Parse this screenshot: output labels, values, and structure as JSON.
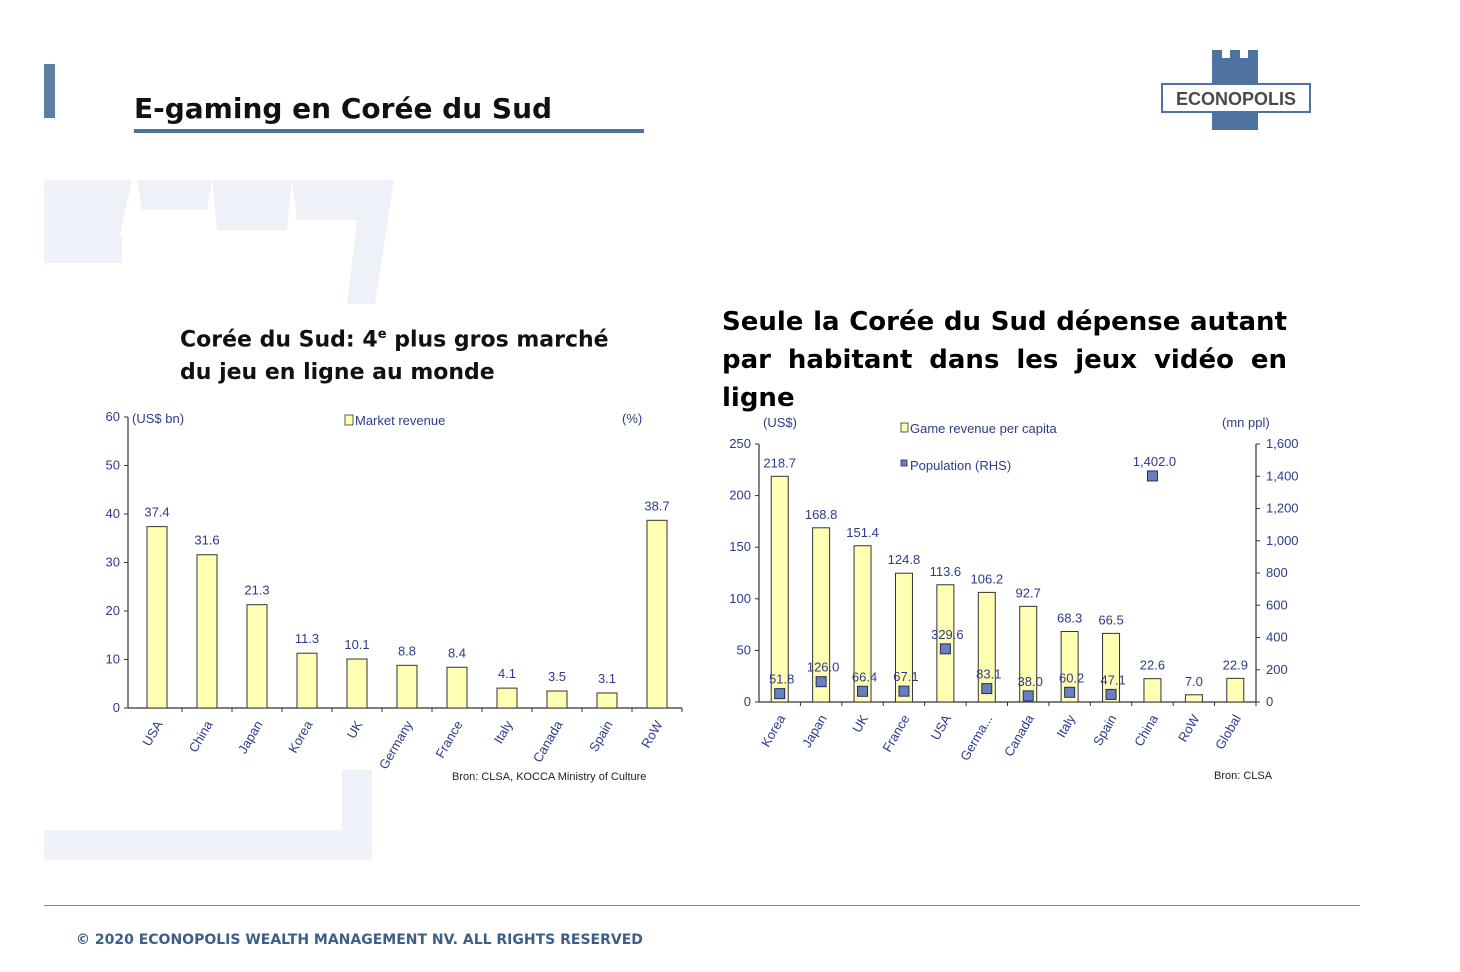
{
  "header": {
    "title": "E-gaming en Corée du Sud",
    "logo_text": "ECONOPOLIS"
  },
  "left_panel": {
    "subtitle_part1": "Corée du Sud: 4",
    "subtitle_sup": "e",
    "subtitle_part2": " plus gros marché du jeu en ligne au monde",
    "source": "Bron: CLSA, KOCCA Ministry of Culture"
  },
  "right_panel": {
    "subtitle_line1": "Seule la Corée du Sud dépense autant",
    "subtitle_line2": "par habitant dans les jeux vidéo en ligne",
    "source": "Bron: CLSA"
  },
  "footer": {
    "text": "© 2020 ECONOPOLIS WEALTH MANAGEMENT NV. ALL RIGHTS RESERVED"
  },
  "colors": {
    "accent": "#4f73a0",
    "bar_fill": "#ffffb3",
    "bar_stroke": "#333333",
    "marker": "#6b7fbf",
    "label": "#2d3b8c"
  },
  "chart_data": [
    {
      "type": "bar",
      "categories": [
        "USA",
        "China",
        "Japan",
        "Korea",
        "UK",
        "Germany",
        "France",
        "Italy",
        "Canada",
        "Spain",
        "RoW"
      ],
      "series": [
        {
          "name": "Market revenue",
          "values": [
            37.4,
            31.6,
            21.3,
            11.3,
            10.1,
            8.8,
            8.4,
            4.1,
            3.5,
            3.1,
            38.7
          ]
        }
      ],
      "value_labels": [
        "37.4",
        "31.6",
        "21.3",
        "11.3",
        "10.1",
        "8.8",
        "8.4",
        "4.1",
        "3.5",
        "3.1",
        "38.7"
      ],
      "ylim": [
        0,
        60
      ],
      "yticks": [
        0,
        10,
        20,
        30,
        40,
        50,
        60
      ],
      "y_unit_left": "(US$ bn)",
      "y_unit_right": "(%)",
      "legend": "top-center",
      "grid": false
    },
    {
      "type": "bar",
      "categories": [
        "Korea",
        "Japan",
        "UK",
        "France",
        "USA",
        "Germa...",
        "Canada",
        "Italy",
        "Spain",
        "China",
        "RoW",
        "Global"
      ],
      "series": [
        {
          "name": "Game revenue per capita",
          "axis": "left",
          "values": [
            218.7,
            168.8,
            151.4,
            124.8,
            113.6,
            106.2,
            92.7,
            68.3,
            66.5,
            22.6,
            7.0,
            22.9
          ],
          "value_labels": [
            "218.7",
            "168.8",
            "151.4",
            "124.8",
            "113.6",
            "106.2",
            "92.7",
            "68.3",
            "66.5",
            "22.6",
            "7.0",
            "22.9"
          ]
        },
        {
          "name": "Population (RHS)",
          "axis": "right",
          "values": [
            51.8,
            126.0,
            66.4,
            67.1,
            329.6,
            83.1,
            38.0,
            60.2,
            47.1,
            1402.0,
            null,
            null
          ],
          "value_labels": [
            "51.8",
            "126.0",
            "66.4",
            "67.1",
            "329.6",
            "83.1",
            "38.0",
            "60.2",
            "47.1",
            "1,402.0",
            "",
            ""
          ]
        }
      ],
      "ylim_left": [
        0,
        250
      ],
      "yticks_left": [
        "0",
        "50",
        "100",
        "150",
        "200",
        "250"
      ],
      "ylim_right": [
        0,
        1600
      ],
      "yticks_right": [
        "0",
        "200",
        "400",
        "600",
        "800",
        "1,000",
        "1,200",
        "1,400",
        "1,600"
      ],
      "y_unit_left": "(US$)",
      "y_unit_right": "(mn ppl)",
      "legend": "top-center",
      "grid": false
    }
  ]
}
